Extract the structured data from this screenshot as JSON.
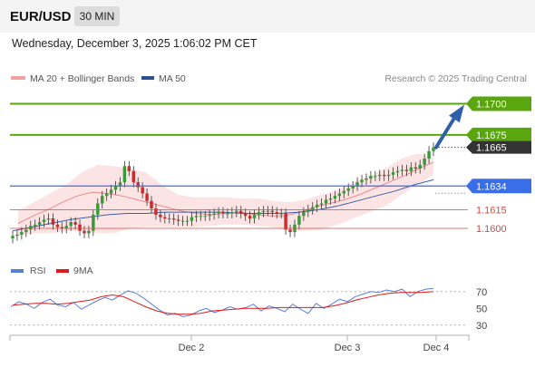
{
  "header": {
    "pair": "EUR/USD",
    "timeframe": "30 MIN",
    "datetime": "Wednesday, December 3, 2025 1:06:02 PM CET"
  },
  "legend": {
    "ma20_label": "MA 20 + Bollinger Bands",
    "ma50_label": "MA 50",
    "copyright": "Research © 2025 Trading Central",
    "rsi_label": "RSI",
    "ma9_label": "9MA"
  },
  "colors": {
    "candle_up": "#3a9a3a",
    "candle_down": "#cc2b2b",
    "bollinger_fill": "#fbd6d6",
    "ma20": "#e88a8a",
    "ma50": "#3b5fa8",
    "target": "#5aa60e",
    "support": "#3a6ee8",
    "pivot_red": "#d9483b",
    "last_price": "#333333",
    "rsi": "#5b7fd6",
    "rsi_ma": "#e01a1a",
    "arrow": "#2f5fa8"
  },
  "chart_data": [
    {
      "type": "candlestick",
      "title": "EUR/USD",
      "ylim": [
        1.1584,
        1.1712
      ],
      "x_ticks": [
        "Dec 2",
        "Dec 3",
        "Dec 4"
      ],
      "levels": [
        {
          "label": "1.1700",
          "value": 1.17,
          "kind": "target"
        },
        {
          "label": "1.1675",
          "value": 1.1675,
          "kind": "target"
        },
        {
          "label": "1.1665",
          "value": 1.1665,
          "kind": "last"
        },
        {
          "label": "1.1634",
          "value": 1.1634,
          "kind": "support"
        },
        {
          "label": "1.1615",
          "value": 1.1615,
          "kind": "pivot"
        },
        {
          "label": "1.1600",
          "value": 1.16,
          "kind": "pivot"
        }
      ],
      "forecast_arrow": {
        "from": 1.1665,
        "to": 1.17
      },
      "close_series": [
        1.1594,
        1.1595,
        1.1597,
        1.1599,
        1.1602,
        1.1603,
        1.1605,
        1.1607,
        1.1608,
        1.1603,
        1.1601,
        1.16,
        1.1602,
        1.1605,
        1.1603,
        1.1598,
        1.1596,
        1.1598,
        1.1611,
        1.162,
        1.1626,
        1.1628,
        1.1631,
        1.1634,
        1.1637,
        1.165,
        1.1646,
        1.1637,
        1.1633,
        1.1628,
        1.1622,
        1.1616,
        1.1611,
        1.1609,
        1.1608,
        1.1608,
        1.1607,
        1.1606,
        1.1606,
        1.1606,
        1.1609,
        1.161,
        1.161,
        1.161,
        1.1611,
        1.1612,
        1.1613,
        1.1612,
        1.1612,
        1.1613,
        1.1614,
        1.1612,
        1.161,
        1.1608,
        1.1611,
        1.1613,
        1.1614,
        1.1614,
        1.1613,
        1.1612,
        1.1612,
        1.1599,
        1.1597,
        1.1603,
        1.161,
        1.1613,
        1.1615,
        1.1617,
        1.1619,
        1.162,
        1.1623,
        1.1624,
        1.1626,
        1.1628,
        1.163,
        1.1632,
        1.1634,
        1.1637,
        1.1639,
        1.164,
        1.1642,
        1.1642,
        1.1643,
        1.1642,
        1.1643,
        1.1645,
        1.1646,
        1.1647,
        1.1646,
        1.1649,
        1.1648,
        1.1651,
        1.1656,
        1.1662,
        1.1665
      ],
      "ma20_series": [
        1.1604,
        1.161,
        1.1615,
        1.1621,
        1.1626,
        1.1629,
        1.1628,
        1.1626,
        1.1623,
        1.162,
        1.1617,
        1.1614,
        1.1612,
        1.1611,
        1.1612,
        1.1613,
        1.1611,
        1.161,
        1.161,
        1.1613,
        1.1617,
        1.162,
        1.1623,
        1.1627,
        1.1632,
        1.1637,
        1.1642,
        1.1648,
        1.1653
      ],
      "ma50_series": [
        1.1598,
        1.1601,
        1.1604,
        1.1607,
        1.1609,
        1.1611,
        1.1612,
        1.1612,
        1.1613,
        1.1613,
        1.1613,
        1.1613,
        1.1612,
        1.1612,
        1.1612,
        1.1613,
        1.1615,
        1.1618,
        1.1622,
        1.1626,
        1.163,
        1.1635,
        1.1639
      ],
      "bollinger_upper": [
        1.1614,
        1.1621,
        1.1628,
        1.1635,
        1.1645,
        1.1651,
        1.165,
        1.1648,
        1.1645,
        1.1635,
        1.1627,
        1.1625,
        1.1625,
        1.1625,
        1.1624,
        1.1624,
        1.1622,
        1.1621,
        1.1623,
        1.1627,
        1.1631,
        1.1637,
        1.1642,
        1.1648,
        1.1656,
        1.166,
        1.1657
      ],
      "bollinger_lower": [
        1.1594,
        1.1596,
        1.1596,
        1.1598,
        1.1598,
        1.1596,
        1.1596,
        1.16,
        1.1601,
        1.1601,
        1.1601,
        1.1601,
        1.1602,
        1.1603,
        1.1603,
        1.1602,
        1.1601,
        1.1598,
        1.1598,
        1.1599,
        1.1603,
        1.1608,
        1.1613,
        1.1618,
        1.1627,
        1.1635,
        1.1643
      ]
    },
    {
      "type": "line",
      "title": "RSI",
      "ylim": [
        20,
        85
      ],
      "y_ticks": [
        70,
        50,
        30
      ],
      "series": [
        {
          "name": "RSI",
          "values": [
            52,
            58,
            55,
            50,
            57,
            61,
            54,
            52,
            57,
            49,
            54,
            59,
            63,
            60,
            66,
            71,
            68,
            62,
            55,
            48,
            42,
            44,
            40,
            42,
            47,
            50,
            45,
            48,
            52,
            49,
            51,
            55,
            47,
            53,
            50,
            46,
            55,
            49,
            44,
            56,
            50,
            55,
            61,
            58,
            64,
            67,
            70,
            69,
            72,
            70,
            73,
            64,
            70,
            73,
            74
          ]
        },
        {
          "name": "9MA",
          "values": [
            54,
            55,
            56,
            56,
            55,
            56,
            58,
            60,
            64,
            66,
            64,
            58,
            52,
            47,
            44,
            43,
            43,
            44,
            47,
            48,
            49,
            50,
            50,
            50,
            51,
            51,
            51,
            51,
            51,
            53,
            56,
            60,
            63,
            66,
            68,
            69,
            69,
            69,
            70
          ]
        }
      ]
    }
  ]
}
